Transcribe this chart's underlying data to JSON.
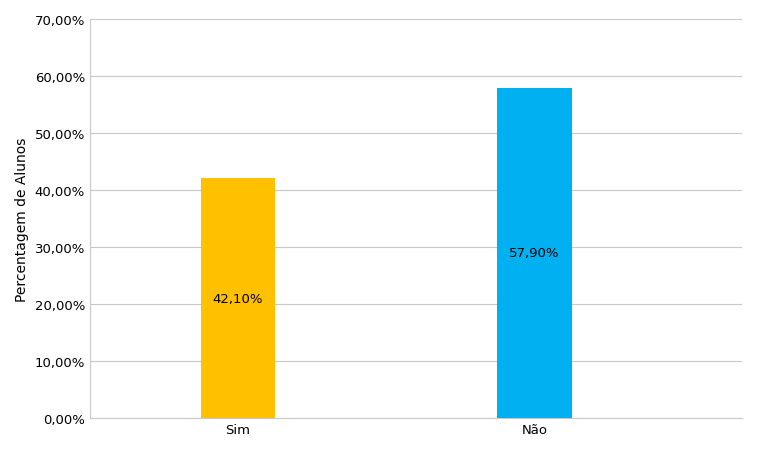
{
  "categories": [
    "Sim",
    "Não"
  ],
  "values": [
    42.1,
    57.9
  ],
  "bar_colors": [
    "#FFC000",
    "#00B0F0"
  ],
  "bar_labels": [
    "42,10%",
    "57,90%"
  ],
  "ylabel": "Percentagem de Alunos",
  "ylim": [
    0,
    70
  ],
  "yticks": [
    0,
    10,
    20,
    30,
    40,
    50,
    60,
    70
  ],
  "ytick_labels": [
    "0,00%",
    "10,00%",
    "20,00%",
    "30,00%",
    "40,00%",
    "50,00%",
    "60,00%",
    "70,00%"
  ],
  "background_color": "#FFFFFF",
  "grid_color": "#C8C8C8",
  "label_fontsize": 10,
  "tick_fontsize": 9.5,
  "bar_label_fontsize": 9.5,
  "bar_width": 0.25,
  "x_positions": [
    1,
    2
  ],
  "xlim": [
    0.5,
    2.7
  ]
}
